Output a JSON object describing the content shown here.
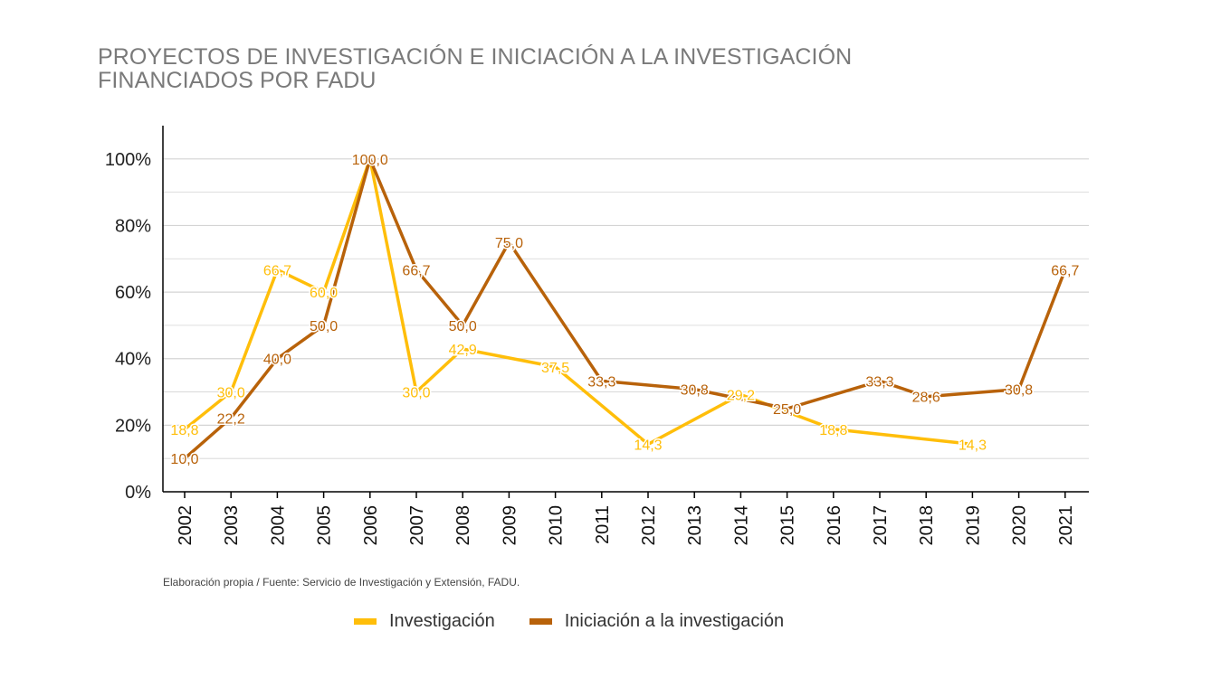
{
  "title_lines": [
    "PROYECTOS DE INVESTIGACIÓN E INICIACIÓN A LA INVESTIGACIÓN",
    "FINANCIADOS POR FADU"
  ],
  "source_note": "Elaboración propia / Fuente: Servicio de Investigación y Extensión, FADU.",
  "colors": {
    "investigacion": "#FFBE0A",
    "iniciacion": "#B8620A",
    "grid": "#d4d4d4",
    "axis": "#000000"
  },
  "chart_data": {
    "type": "line",
    "title": "PROYECTOS DE INVESTIGACIÓN E INICIACIÓN A LA INVESTIGACIÓN FINANCIADOS POR FADU",
    "categories": [
      "2002",
      "2003",
      "2004",
      "2005",
      "2006",
      "2007",
      "2008",
      "2009",
      "2010",
      "2011",
      "2012",
      "2013",
      "2014",
      "2015",
      "2016",
      "2017",
      "2018",
      "2019",
      "2020",
      "2021"
    ],
    "ylim": [
      0,
      110
    ],
    "yticks": [
      0,
      20,
      40,
      60,
      80,
      100
    ],
    "ytick_labels": [
      "0%",
      "20%",
      "40%",
      "60%",
      "80%",
      "100%"
    ],
    "grid": true,
    "legend_position": "bottom",
    "series": [
      {
        "name": "Investigación",
        "color": "#FFBE0A",
        "points": [
          {
            "x": "2002",
            "y": 18.8,
            "label": "18,8"
          },
          {
            "x": "2003",
            "y": 30.0,
            "label": "30,0"
          },
          {
            "x": "2004",
            "y": 66.7,
            "label": "66,7"
          },
          {
            "x": "2005",
            "y": 60.0,
            "label": "60,0"
          },
          {
            "x": "2006",
            "y": 100.0,
            "label": null
          },
          {
            "x": "2007",
            "y": 30.0,
            "label": "30,0"
          },
          {
            "x": "2008",
            "y": 42.9,
            "label": "42,9"
          },
          {
            "x": "2010",
            "y": 37.5,
            "label": "37,5"
          },
          {
            "x": "2012",
            "y": 14.3,
            "label": "14,3"
          },
          {
            "x": "2014",
            "y": 29.2,
            "label": "29,2"
          },
          {
            "x": "2016",
            "y": 18.8,
            "label": "18,8"
          },
          {
            "x": "2019",
            "y": 14.3,
            "label": "14,3"
          }
        ]
      },
      {
        "name": "Iniciación a la investigación",
        "color": "#B8620A",
        "points": [
          {
            "x": "2002",
            "y": 10.0,
            "label": "10,0"
          },
          {
            "x": "2003",
            "y": 22.2,
            "label": "22,2"
          },
          {
            "x": "2004",
            "y": 40.0,
            "label": "40,0"
          },
          {
            "x": "2005",
            "y": 50.0,
            "label": "50,0"
          },
          {
            "x": "2006",
            "y": 100.0,
            "label": "100,0"
          },
          {
            "x": "2007",
            "y": 66.7,
            "label": "66,7"
          },
          {
            "x": "2008",
            "y": 50.0,
            "label": "50,0"
          },
          {
            "x": "2009",
            "y": 75.0,
            "label": "75,0"
          },
          {
            "x": "2011",
            "y": 33.3,
            "label": "33,3"
          },
          {
            "x": "2013",
            "y": 30.8,
            "label": "30,8"
          },
          {
            "x": "2015",
            "y": 25.0,
            "label": "25,0"
          },
          {
            "x": "2017",
            "y": 33.3,
            "label": "33,3"
          },
          {
            "x": "2018",
            "y": 28.6,
            "label": "28,6"
          },
          {
            "x": "2020",
            "y": 30.8,
            "label": "30,8"
          },
          {
            "x": "2021",
            "y": 66.7,
            "label": "66,7"
          }
        ]
      }
    ]
  }
}
